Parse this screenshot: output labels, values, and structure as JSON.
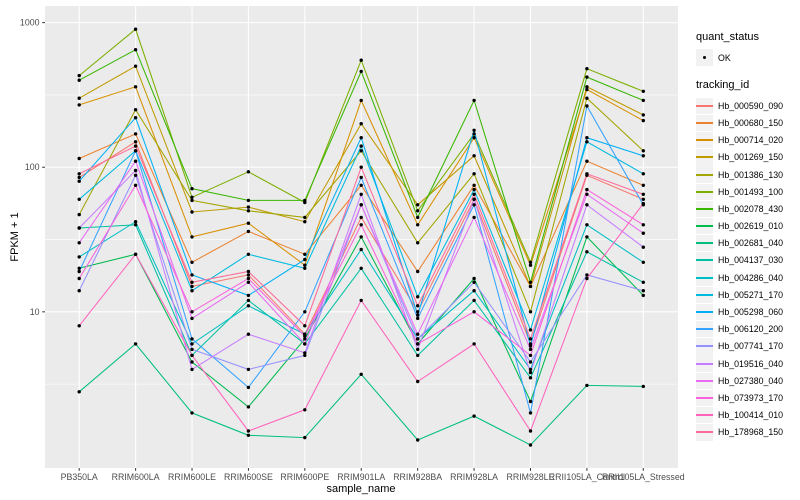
{
  "chart_data": {
    "type": "line",
    "title": "",
    "xlabel": "sample_name",
    "ylabel": "FPKM + 1",
    "y_scale": "log10",
    "ylim": [
      0.83,
      1300
    ],
    "y_tick_labels": [
      "10",
      "100",
      "1000"
    ],
    "y_tick_values": [
      10,
      100,
      1000
    ],
    "y_minor_tick_values": [
      3.1623,
      31.623,
      316.23
    ],
    "grid": true,
    "legend_position": "right",
    "point_color": "#000000",
    "categories": [
      "PB350LA",
      "RRIM600LA",
      "RRIM600LE",
      "RRIM600SE",
      "RRIM600PE",
      "RRIM901LA",
      "RRIM928BA",
      "RRIM928LA",
      "RRIM928LE",
      "RRII105LA_Control",
      "RRII105LA_Stressed"
    ],
    "series": [
      {
        "name": "Hb_000590_090",
        "color": "#F8766D",
        "values": [
          85,
          150,
          15,
          18,
          7,
          45,
          10,
          60,
          6,
          88,
          60
        ]
      },
      {
        "name": "Hb_000680_150",
        "color": "#EA8331",
        "values": [
          115,
          170,
          22,
          36,
          25,
          75,
          19,
          75,
          15,
          110,
          75
        ]
      },
      {
        "name": "Hb_000714_020",
        "color": "#D89000",
        "values": [
          270,
          360,
          33,
          41,
          21,
          290,
          40,
          160,
          21,
          345,
          210
        ]
      },
      {
        "name": "Hb_001269_150",
        "color": "#C09B00",
        "values": [
          300,
          500,
          49,
          53,
          42,
          200,
          55,
          120,
          15,
          360,
          230
        ]
      },
      {
        "name": "Hb_001386_130",
        "color": "#A3A500",
        "values": [
          47,
          250,
          59,
          50,
          45,
          130,
          30,
          90,
          10,
          300,
          130
        ]
      },
      {
        "name": "Hb_001493_100",
        "color": "#7CAE00",
        "values": [
          430,
          900,
          62,
          93,
          57,
          550,
          50,
          170,
          22,
          480,
          335
        ]
      },
      {
        "name": "Hb_002078_430",
        "color": "#39B600",
        "values": [
          400,
          650,
          71,
          59,
          59,
          460,
          45,
          290,
          16,
          420,
          290
        ]
      },
      {
        "name": "Hb_002619_010",
        "color": "#00BB4E",
        "values": [
          20,
          25,
          4.5,
          2.2,
          6.5,
          33,
          6,
          17,
          2.4,
          33,
          13
        ]
      },
      {
        "name": "Hb_002681_040",
        "color": "#00BF7D",
        "values": [
          2.8,
          6,
          2,
          1.4,
          1.35,
          3.7,
          1.3,
          1.9,
          1.2,
          3.1,
          3.05
        ]
      },
      {
        "name": "Hb_004137_030",
        "color": "#00C1A3",
        "values": [
          38,
          40,
          5,
          12,
          6,
          20,
          5,
          12,
          3.5,
          26,
          16
        ]
      },
      {
        "name": "Hb_004286_040",
        "color": "#00BFC4",
        "values": [
          24,
          42,
          6,
          11,
          7,
          27,
          6.5,
          14,
          4,
          40,
          22
        ]
      },
      {
        "name": "Hb_005271_170",
        "color": "#00BAE0",
        "values": [
          60,
          130,
          14,
          25,
          20,
          140,
          12.7,
          70,
          7.5,
          150,
          90
        ]
      },
      {
        "name": "Hb_005298_060",
        "color": "#00B0F6",
        "values": [
          80,
          220,
          18,
          13,
          23,
          160,
          9.5,
          180,
          5.8,
          160,
          120
        ]
      },
      {
        "name": "Hb_006120_200",
        "color": "#35A2FF",
        "values": [
          19,
          130,
          6.5,
          3,
          10,
          85,
          9,
          55,
          2,
          265,
          55
        ]
      },
      {
        "name": "Hb_007741_170",
        "color": "#9590FF",
        "values": [
          14,
          88,
          5.5,
          4,
          5,
          55,
          6.5,
          16,
          4.5,
          18,
          14
        ]
      },
      {
        "name": "Hb_019516_040",
        "color": "#C77CFF",
        "values": [
          38,
          95,
          4,
          7,
          5.2,
          65,
          5.5,
          60,
          3.8,
          55,
          28
        ]
      },
      {
        "name": "Hb_027380_040",
        "color": "#E76BF3",
        "values": [
          30,
          110,
          9,
          16,
          6,
          55,
          7,
          45,
          5.5,
          65,
          35
        ]
      },
      {
        "name": "Hb_073973_170",
        "color": "#FA62DB",
        "values": [
          17,
          75,
          10,
          17,
          6.8,
          40,
          6,
          10,
          5,
          70,
          40
        ]
      },
      {
        "name": "Hb_100414_010",
        "color": "#FF62BC",
        "values": [
          8,
          25,
          5,
          1.5,
          2.1,
          12,
          3.3,
          6,
          1.5,
          17,
          56
        ]
      },
      {
        "name": "Hb_178968_150",
        "color": "#FF6A98",
        "values": [
          90,
          140,
          16,
          19,
          8,
          100,
          11,
          65,
          6.5,
          90,
          65
        ]
      }
    ]
  },
  "legend": {
    "quant_status": {
      "title": "quant_status",
      "items": [
        {
          "label": "OK",
          "marker": "point",
          "color": "#000000"
        }
      ]
    },
    "tracking": {
      "title": "tracking_id"
    }
  },
  "style": {
    "panel_bg": "#EBEBEB",
    "grid_color": "#FFFFFF",
    "key_bg": "#F2F2F2",
    "tick_color": "#333333",
    "tick_label_color": "#4D4D4D",
    "axis_title_color": "#000000"
  }
}
